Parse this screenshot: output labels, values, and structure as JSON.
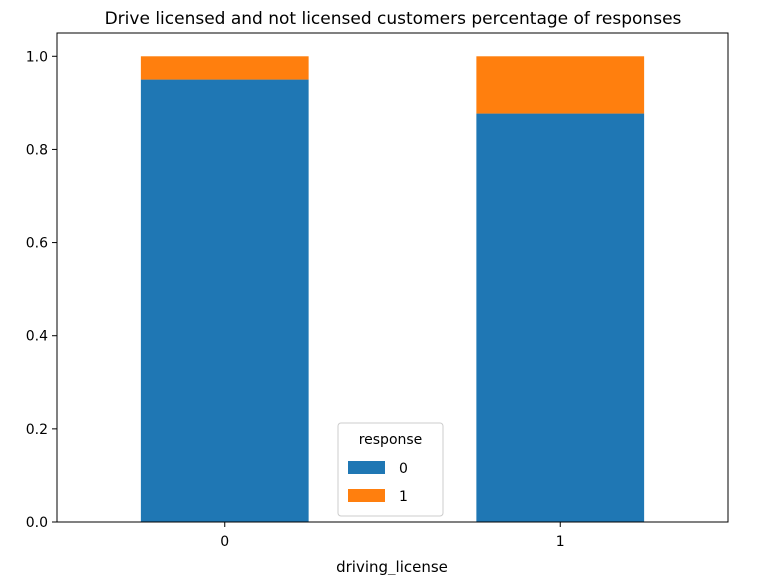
{
  "chart_data": {
    "type": "bar",
    "stacked": true,
    "title": "Drive licensed and not licensed customers percentage of responses",
    "xlabel": "driving_license",
    "ylabel": "",
    "categories": [
      "0",
      "1"
    ],
    "ylim": [
      0,
      1.05
    ],
    "yticks": [
      "0.0",
      "0.2",
      "0.4",
      "0.6",
      "0.8",
      "1.0"
    ],
    "grid": false,
    "legend": {
      "title": "response",
      "placement": "lower-center"
    },
    "series": [
      {
        "name": "0",
        "color": "#1f77b4",
        "values": [
          0.95,
          0.877
        ]
      },
      {
        "name": "1",
        "color": "#ff7f0e",
        "values": [
          0.05,
          0.123
        ]
      }
    ]
  }
}
